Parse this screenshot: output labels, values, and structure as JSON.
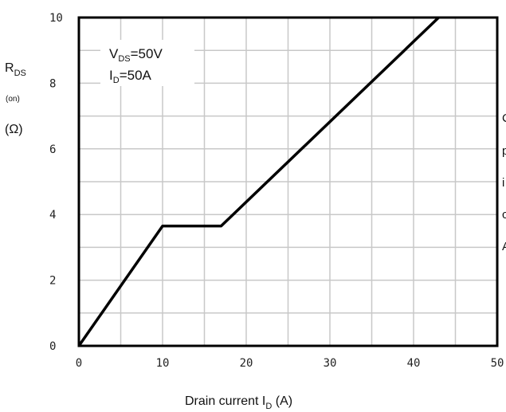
{
  "chart_data": {
    "type": "line",
    "xlim": [
      0,
      50
    ],
    "ylim": [
      0,
      10
    ],
    "x_ticks": [
      "0",
      "10",
      "20",
      "30",
      "40",
      "50"
    ],
    "y_ticks": [
      "0",
      "2",
      "4",
      "6",
      "8",
      "10"
    ],
    "x_gridlines": [
      0,
      5,
      10,
      15,
      20,
      25,
      30,
      35,
      40,
      45,
      50
    ],
    "y_gridlines": [
      0,
      1,
      2,
      3,
      4,
      5,
      6,
      7,
      8,
      9,
      10
    ],
    "grid": true,
    "xlabel": {
      "main": "Drain current I",
      "sub": "D",
      "unit": " (A)"
    },
    "ylabel": {
      "main": "R",
      "sub": "DS",
      "note": "(on)",
      "unit": "(Ω)"
    },
    "annotation": {
      "line1": {
        "main": "V",
        "sub": "DS",
        "value": "=50V"
      },
      "line2": {
        "main": "I",
        "sub": "D",
        "value": "=50A"
      }
    },
    "series": [
      {
        "x": [
          0,
          10,
          17,
          43
        ],
        "y": [
          0,
          3.65,
          3.65,
          10
        ],
        "color": "#000000"
      }
    ],
    "side_text": [
      "C",
      "p",
      "i",
      "c",
      "A"
    ]
  }
}
